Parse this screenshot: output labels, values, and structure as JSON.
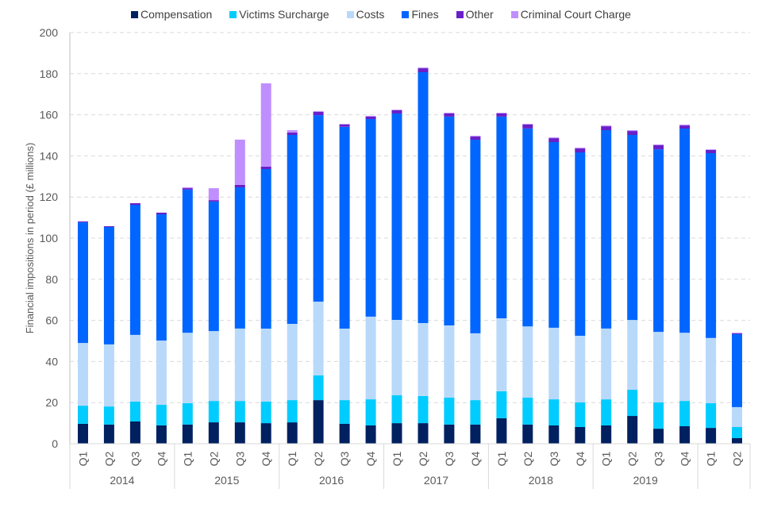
{
  "chart_data": {
    "type": "bar",
    "stacked": true,
    "title": "",
    "xlabel": "",
    "ylabel": "Financial impositions in period (£ millions)",
    "ylim": [
      0,
      200
    ],
    "yticks": [
      0,
      20,
      40,
      60,
      80,
      100,
      120,
      140,
      160,
      180,
      200
    ],
    "grid": true,
    "legend_position": "top-center",
    "groups": [
      {
        "year": "2014",
        "quarters": [
          "Q1",
          "Q2",
          "Q3",
          "Q4"
        ]
      },
      {
        "year": "2015",
        "quarters": [
          "Q1",
          "Q2",
          "Q3",
          "Q4"
        ]
      },
      {
        "year": "2016",
        "quarters": [
          "Q1",
          "Q2",
          "Q3",
          "Q4"
        ]
      },
      {
        "year": "2017",
        "quarters": [
          "Q1",
          "Q2",
          "Q3",
          "Q4"
        ]
      },
      {
        "year": "2018",
        "quarters": [
          "Q1",
          "Q2",
          "Q3",
          "Q4"
        ]
      },
      {
        "year": "2019",
        "quarters": [
          "Q1",
          "Q2",
          "Q3",
          "Q4"
        ]
      },
      {
        "year": "",
        "quarters": [
          "Q1",
          "Q2"
        ]
      }
    ],
    "categories": [
      "2014 Q1",
      "2014 Q2",
      "2014 Q3",
      "2014 Q4",
      "2015 Q1",
      "2015 Q2",
      "2015 Q3",
      "2015 Q4",
      "2016 Q1",
      "2016 Q2",
      "2016 Q3",
      "2016 Q4",
      "2017 Q1",
      "2017 Q2",
      "2017 Q3",
      "2017 Q4",
      "2018 Q1",
      "2018 Q2",
      "2018 Q3",
      "2018 Q4",
      "2019 Q1",
      "2019 Q2",
      "2019 Q3",
      "2019 Q4",
      "2020 Q1",
      "2020 Q2"
    ],
    "series": [
      {
        "name": "Compensation",
        "color": "#002060",
        "values": [
          9.7,
          9.3,
          10.8,
          8.9,
          9.3,
          10.4,
          10.4,
          10.0,
          10.4,
          21.2,
          9.7,
          8.9,
          10.0,
          10.0,
          9.3,
          9.3,
          12.4,
          9.3,
          8.9,
          8.1,
          8.9,
          13.5,
          7.3,
          8.5,
          7.7,
          2.7
        ]
      },
      {
        "name": "Victims Surcharge",
        "color": "#00CCFF",
        "values": [
          8.8,
          8.8,
          9.7,
          10.0,
          10.4,
          10.4,
          10.4,
          10.5,
          10.8,
          12.0,
          11.5,
          12.7,
          13.6,
          13.2,
          13.1,
          11.9,
          13.1,
          13.1,
          12.7,
          12.0,
          12.7,
          12.8,
          12.8,
          12.3,
          12.0,
          5.4
        ]
      },
      {
        "name": "Costs",
        "color": "#B8D9FA",
        "values": [
          30.5,
          30.2,
          32.4,
          31.3,
          34.3,
          34.0,
          35.2,
          35.5,
          37.1,
          35.9,
          34.8,
          40.2,
          36.6,
          35.5,
          35.1,
          32.5,
          35.5,
          34.7,
          34.8,
          32.4,
          34.4,
          33.9,
          34.3,
          33.2,
          31.7,
          9.7
        ]
      },
      {
        "name": "Fines",
        "color": "#0066FF",
        "values": [
          58.7,
          57.1,
          63.3,
          61.4,
          69.6,
          63.0,
          68.7,
          77.6,
          91.9,
          90.7,
          98.1,
          96.1,
          100.4,
          122.0,
          101.6,
          94.2,
          98.1,
          96.2,
          90.3,
          89.2,
          96.5,
          90.0,
          88.8,
          99.3,
          89.9,
          35.5
        ]
      },
      {
        "name": "Other",
        "color": "#6A1FC8",
        "values": [
          0.4,
          0.4,
          0.8,
          0.8,
          0.7,
          0.7,
          1.2,
          1.2,
          1.2,
          1.6,
          1.1,
          1.2,
          1.6,
          1.9,
          1.5,
          1.5,
          1.5,
          1.9,
          1.9,
          1.9,
          1.9,
          1.9,
          2.0,
          1.5,
          1.6,
          0.4
        ]
      },
      {
        "name": "Criminal Court Charge",
        "color": "#BF8FFF",
        "values": [
          0,
          0,
          0,
          0,
          0.4,
          5.8,
          22.0,
          40.5,
          1.1,
          0.4,
          0.4,
          0.4,
          0.3,
          0.4,
          0.4,
          0.4,
          0.4,
          0.4,
          0.4,
          0.4,
          0.4,
          0.4,
          0.4,
          0.4,
          0.3,
          0.3
        ]
      }
    ]
  }
}
